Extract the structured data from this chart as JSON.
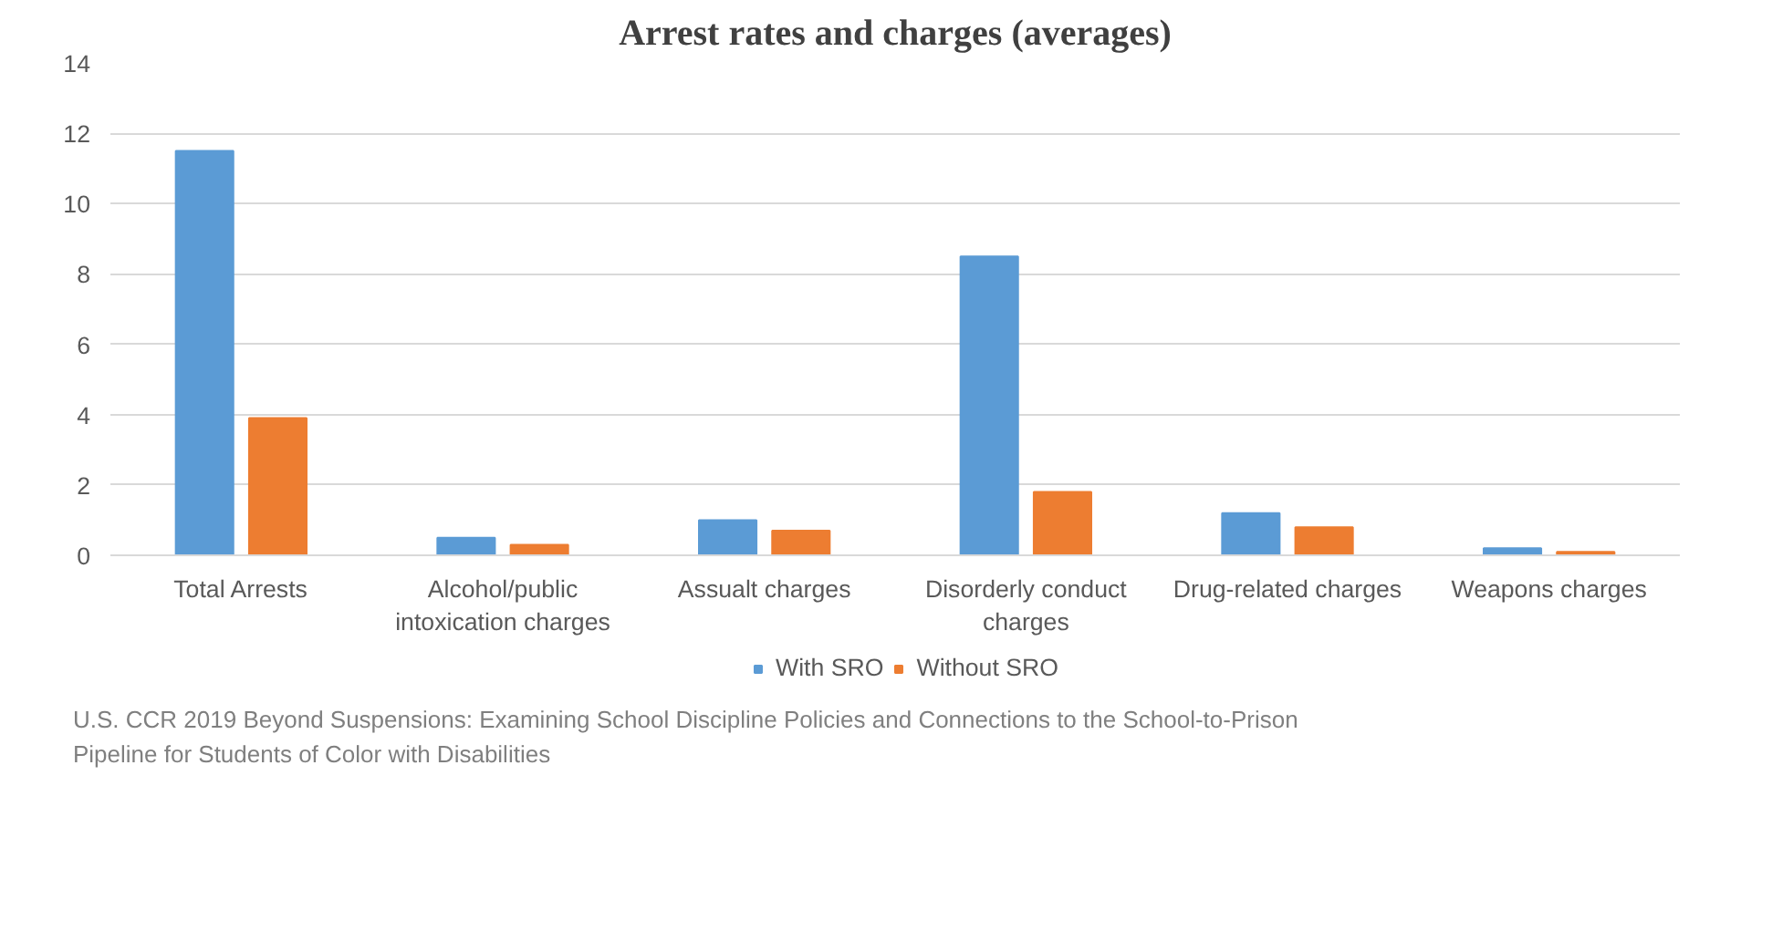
{
  "chart_data": {
    "type": "bar",
    "title": "Arrest rates and charges (averages)",
    "categories": [
      "Total Arrests",
      "Alcohol/public intoxication charges",
      "Assualt charges",
      "Disorderly conduct charges",
      "Drug-related charges",
      "Weapons charges"
    ],
    "series": [
      {
        "name": "With SRO",
        "color": "#5b9bd5",
        "values": [
          11.5,
          0.5,
          1.0,
          8.5,
          1.2,
          0.2
        ]
      },
      {
        "name": "Without SRO",
        "color": "#ed7d31",
        "values": [
          3.9,
          0.3,
          0.7,
          1.8,
          0.8,
          0.1
        ]
      }
    ],
    "ylim": [
      0,
      14
    ],
    "yticks": [
      0,
      2,
      4,
      6,
      8,
      10,
      12,
      14
    ],
    "grid": "y",
    "legend": "bottom",
    "annotations": [
      "U.S. CCR 2019 Beyond Suspensions: Examining School Discipline Policies and Connections to the School-to-Prison Pipeline for Students of Color with Disabilities"
    ]
  }
}
